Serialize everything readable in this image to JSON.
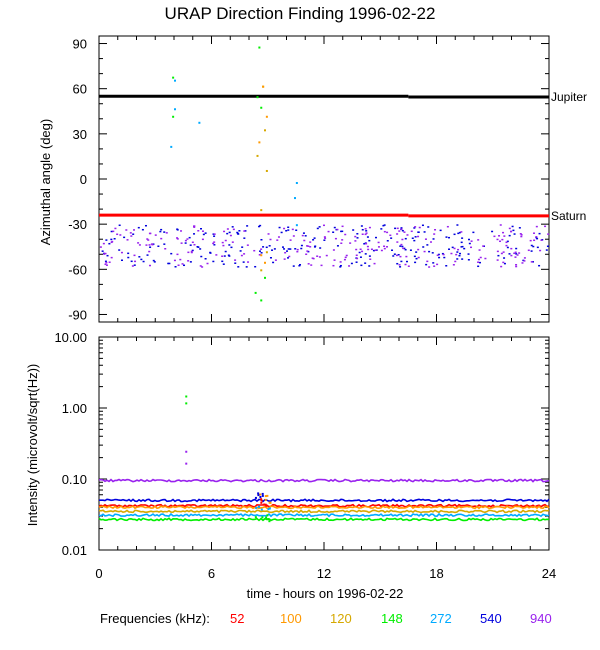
{
  "title": "URAP Direction Finding  1996-02-22",
  "colors": {
    "52": "#ff0000",
    "100": "#ff9900",
    "120": "#d6a800",
    "148": "#00ee00",
    "272": "#00aaff",
    "540": "#0000dd",
    "940": "#9922ee"
  },
  "frequencies": {
    "label": "Frequencies (kHz):",
    "items": [
      {
        "value": "52",
        "color": "#ff0000"
      },
      {
        "value": "100",
        "color": "#ff9900"
      },
      {
        "value": "120",
        "color": "#d6a800"
      },
      {
        "value": "148",
        "color": "#00ee00"
      },
      {
        "value": "272",
        "color": "#00aaff"
      },
      {
        "value": "540",
        "color": "#0000dd"
      },
      {
        "value": "940",
        "color": "#9922ee"
      }
    ]
  },
  "chart_data": [
    {
      "type": "scatter",
      "title": "URAP Direction Finding  1996-02-22",
      "xlabel": "",
      "ylabel": "Azimuthal angle (deg)",
      "xlim": [
        0,
        24
      ],
      "ylim": [
        -95,
        95
      ],
      "yticks": [
        90,
        60,
        30,
        0,
        -30,
        -60,
        -90
      ],
      "reference_lines": [
        {
          "name": "Jupiter",
          "y": 55,
          "color": "#000000"
        },
        {
          "name": "Saturn",
          "y": -24,
          "color": "#ff0000"
        }
      ],
      "series": [
        {
          "freq": "540",
          "band": [
            -58,
            -30
          ],
          "x_range": [
            0,
            24
          ]
        },
        {
          "freq": "940",
          "band": [
            -58,
            -30
          ],
          "x_range": [
            0,
            24
          ]
        },
        {
          "freq": "148",
          "points": [
            [
              3.9,
              68
            ],
            [
              3.9,
              42
            ],
            [
              8.4,
              55
            ],
            [
              8.6,
              48
            ],
            [
              8.5,
              88
            ],
            [
              8.3,
              -75
            ],
            [
              8.6,
              -80
            ],
            [
              8.8,
              -65
            ]
          ]
        },
        {
          "freq": "272",
          "points": [
            [
              4.0,
              66
            ],
            [
              4.0,
              47
            ],
            [
              3.8,
              22
            ],
            [
              5.3,
              38
            ],
            [
              10.5,
              -2
            ],
            [
              10.4,
              -12
            ],
            [
              10.5,
              -30
            ]
          ]
        },
        {
          "freq": "120",
          "points": [
            [
              8.7,
              62
            ],
            [
              8.8,
              33
            ],
            [
              8.4,
              16
            ],
            [
              8.9,
              6
            ],
            [
              8.6,
              -20
            ],
            [
              8.9,
              -48
            ],
            [
              8.6,
              -60
            ]
          ]
        },
        {
          "freq": "100",
          "points": [
            [
              8.7,
              62
            ],
            [
              8.9,
              42
            ],
            [
              8.5,
              25
            ],
            [
              8.6,
              -50
            ],
            [
              8.8,
              -55
            ]
          ]
        }
      ]
    },
    {
      "type": "scatter",
      "title": "",
      "xlabel": "time - hours on 1996-02-22",
      "ylabel": "Intensity (microvolt/sqrt(Hz))",
      "xlim": [
        0,
        24
      ],
      "ylim": [
        0.01,
        10
      ],
      "yscale": "log",
      "ytick_labels": [
        "10.00",
        "1.00",
        "0.10",
        "0.01"
      ],
      "xticks": [
        0,
        6,
        12,
        18,
        24
      ],
      "series": [
        {
          "freq": "940",
          "level": 0.095
        },
        {
          "freq": "540",
          "level": 0.05
        },
        {
          "freq": "52",
          "level": 0.042
        },
        {
          "freq": "100",
          "level": 0.04
        },
        {
          "freq": "120",
          "level": 0.035
        },
        {
          "freq": "272",
          "level": 0.031
        },
        {
          "freq": "148",
          "level": 0.027
        }
      ],
      "spikes": [
        {
          "freq": "148",
          "x": 4.6,
          "y": 1.5
        },
        {
          "freq": "148",
          "x": 4.6,
          "y": 1.2
        },
        {
          "freq": "940",
          "x": 4.6,
          "y": 0.25
        },
        {
          "freq": "940",
          "x": 4.6,
          "y": 0.17
        }
      ]
    }
  ]
}
